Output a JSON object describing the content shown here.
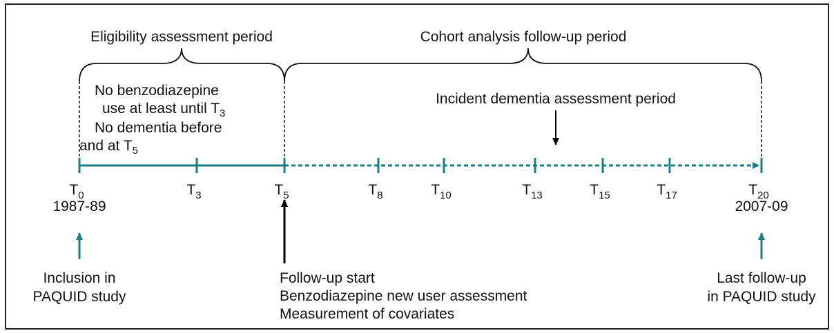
{
  "periods": {
    "eligibility": "Eligibility assessment period",
    "cohort": "Cohort analysis follow-up period"
  },
  "eligibility_criteria": [
    {
      "text": "No benzodiazepine"
    },
    {
      "text": "use at least until T",
      "sub": "3"
    },
    {
      "text": "No dementia before"
    },
    {
      "text": "and at T",
      "sub": "5"
    }
  ],
  "incident_period": "Incident dementia assessment period",
  "timepoints": [
    {
      "label": "T",
      "sub": "0",
      "year": "1987-89"
    },
    {
      "label": "T",
      "sub": "3"
    },
    {
      "label": "T",
      "sub": "5"
    },
    {
      "label": "T",
      "sub": "8"
    },
    {
      "label": "T",
      "sub": "10"
    },
    {
      "label": "T",
      "sub": "13"
    },
    {
      "label": "T",
      "sub": "15"
    },
    {
      "label": "T",
      "sub": "17"
    },
    {
      "label": "T",
      "sub": "20",
      "year": "2007-09"
    }
  ],
  "notes": {
    "inclusion": [
      "Inclusion in",
      "PAQUID study"
    ],
    "follow_up_start": [
      "Follow-up start",
      "Benzodiazepine new user assessment",
      "Measurement of covariates"
    ],
    "last_follow_up": [
      "Last follow-up",
      "in PAQUID study"
    ]
  }
}
